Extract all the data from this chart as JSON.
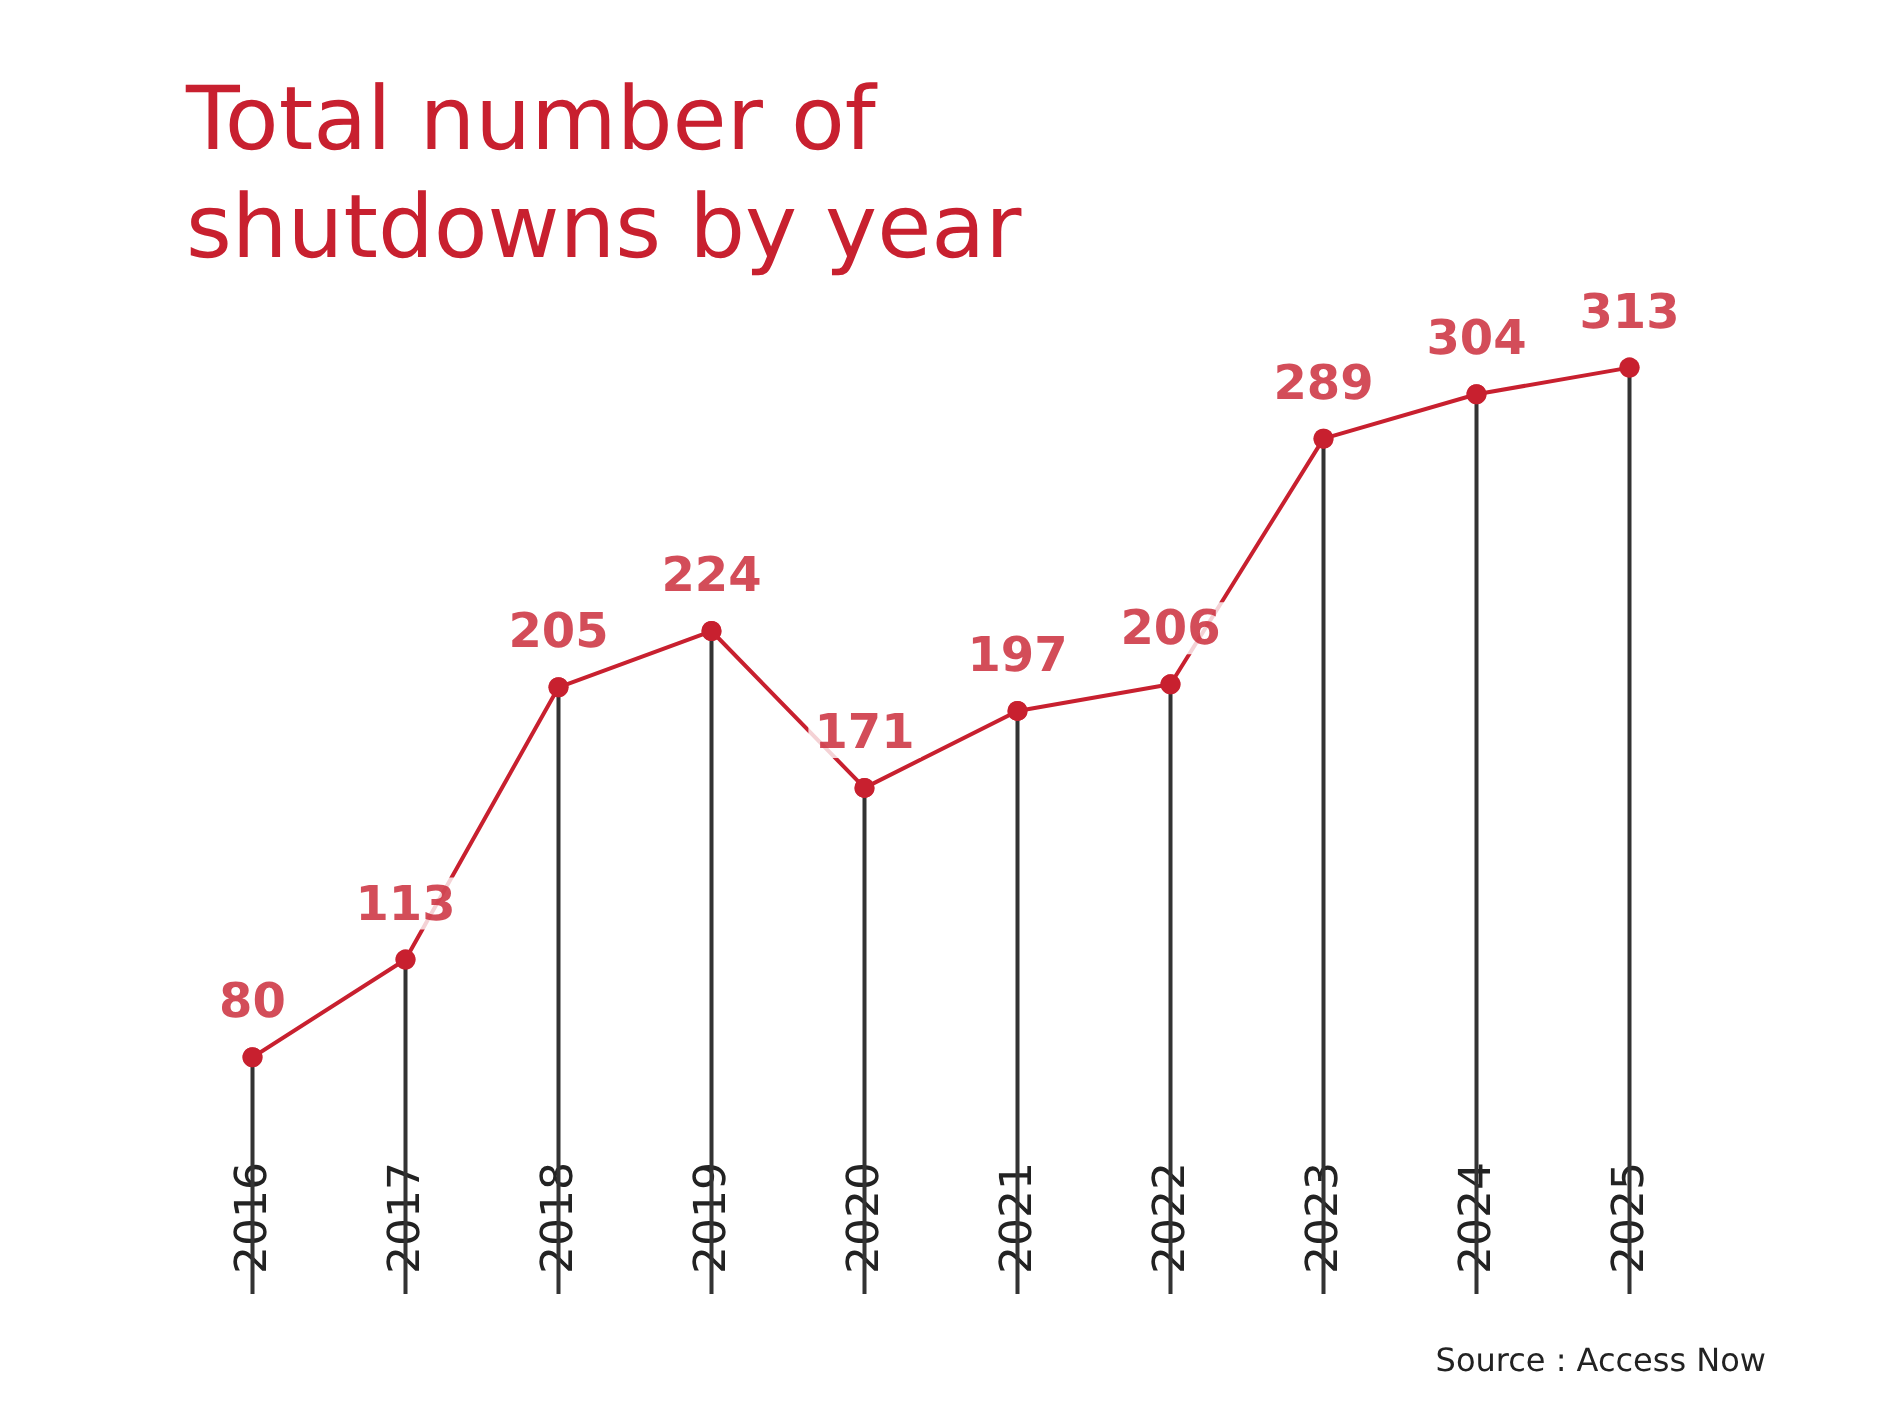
{
  "chart_data": {
    "type": "line",
    "title": "Total number of shutdowns by year",
    "categories": [
      "2016",
      "2017",
      "2018",
      "2019",
      "2020",
      "2021",
      "2022",
      "2023",
      "2024",
      "2025"
    ],
    "series": [
      {
        "type": "lollipop",
        "color": "#c8202f",
        "values": [
          80,
          113,
          205,
          224,
          171,
          197,
          206,
          289,
          304,
          313
        ],
        "value_labels": [
          "80",
          "113",
          "205",
          "224",
          "171",
          "197",
          "206",
          "289",
          "304",
          "313"
        ]
      },
      {
        "color": "#c8202f",
        "values": [
          80,
          113,
          205,
          224,
          171,
          197,
          206,
          289,
          304,
          313
        ]
      }
    ],
    "marker": "circle",
    "grid": false,
    "annotations": [
      "Source : Access Now"
    ]
  }
}
